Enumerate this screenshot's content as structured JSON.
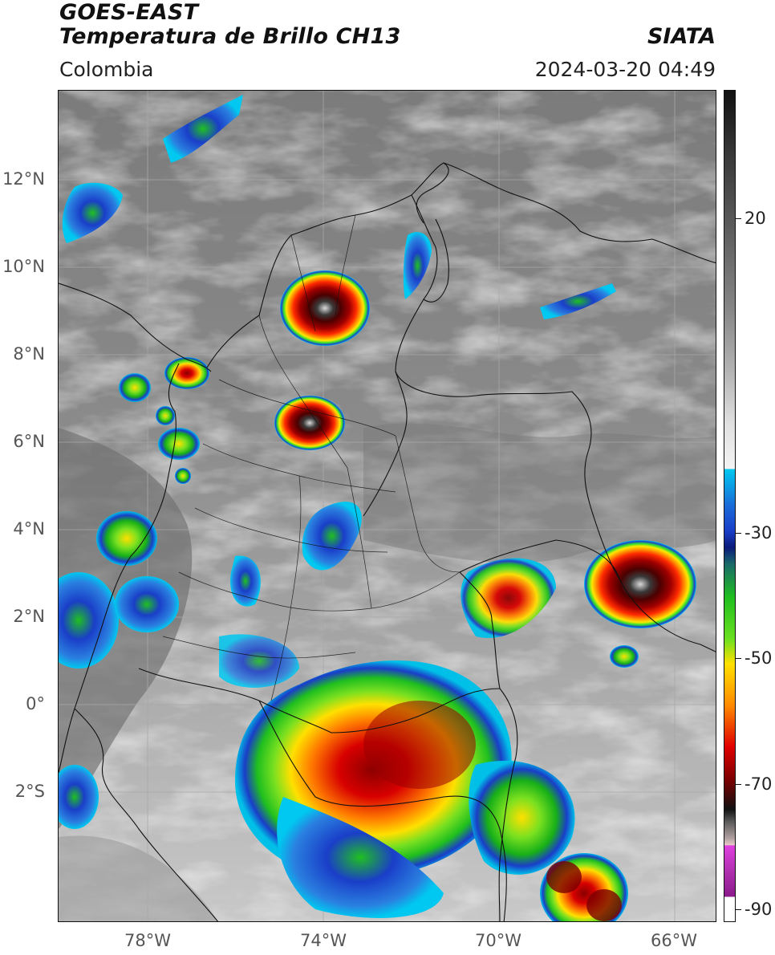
{
  "header": {
    "satellite": "GOES-EAST",
    "product": "Temperatura de Brillo CH13",
    "organization": "SIATA",
    "region": "Colombia",
    "datetime": "2024-03-20 04:49"
  },
  "map": {
    "lat_labels": [
      "12°N",
      "10°N",
      "8°N",
      "6°N",
      "4°N",
      "2°N",
      "0°",
      "2°S"
    ],
    "lon_labels": [
      "78°W",
      "74°W",
      "70°W",
      "66°W"
    ],
    "grid": true,
    "boundaries": "country and department borders"
  },
  "colorbar": {
    "tick_labels": [
      "20",
      "-30",
      "-50",
      "-70",
      "-90"
    ],
    "units": "",
    "colors": {
      "black": "#000000",
      "dark_gray": "#444444",
      "light_gray": "#e6e6e6",
      "cyan": "#00bfe6",
      "blue": "#1a3ec8",
      "navy": "#0a1a7a",
      "green": "#1fdc1f",
      "yellow": "#ffe000",
      "orange": "#ff8a00",
      "red": "#e00000",
      "dark_red": "#7a0000",
      "magenta": "#e040e0",
      "purple": "#8a1a8a",
      "white": "#ffffff"
    }
  }
}
